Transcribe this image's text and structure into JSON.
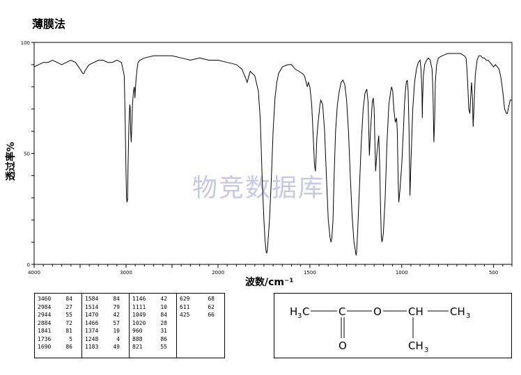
{
  "page": {
    "title": "薄膜法",
    "watermark": "物竞数据库"
  },
  "chart_data": {
    "type": "line",
    "title": "薄膜法",
    "xlabel": "波数/cm⁻¹",
    "ylabel": "透过率%",
    "x_ticks": [
      "4000",
      "3000",
      "2000",
      "1500",
      "1000",
      "500"
    ],
    "y_ticks": [
      "0",
      "50",
      "100"
    ],
    "xlim": [
      4000,
      400
    ],
    "ylim": [
      0,
      100
    ],
    "grid": false,
    "series": [
      {
        "x": [
          4000,
          3950,
          3900,
          3850,
          3800,
          3750,
          3700,
          3650,
          3600,
          3550,
          3500,
          3470,
          3460,
          3450,
          3420,
          3400,
          3350,
          3300,
          3250,
          3200,
          3150,
          3100,
          3050,
          3020,
          3010,
          3000,
          2995,
          2990,
          2984,
          2978,
          2970,
          2960,
          2955,
          2950,
          2944,
          2938,
          2930,
          2920,
          2910,
          2904,
          2900,
          2890,
          2880,
          2870,
          2850,
          2800,
          2700,
          2600,
          2500,
          2400,
          2300,
          2200,
          2100,
          2000,
          1950,
          1900,
          1870,
          1850,
          1841,
          1835,
          1825,
          1800,
          1780,
          1770,
          1760,
          1750,
          1745,
          1740,
          1736,
          1732,
          1728,
          1720,
          1710,
          1700,
          1690,
          1680,
          1670,
          1650,
          1620,
          1600,
          1590,
          1580,
          1560,
          1540,
          1530,
          1520,
          1514,
          1508,
          1500,
          1490,
          1480,
          1475,
          1470,
          1466,
          1462,
          1455,
          1450,
          1445,
          1440,
          1430,
          1420,
          1410,
          1400,
          1390,
          1385,
          1380,
          1374,
          1368,
          1360,
          1350,
          1340,
          1330,
          1320,
          1310,
          1300,
          1290,
          1280,
          1270,
          1260,
          1250,
          1248,
          1245,
          1240,
          1230,
          1220,
          1210,
          1200,
          1190,
          1183,
          1176,
          1170,
          1160,
          1155,
          1150,
          1146,
          1142,
          1135,
          1125,
          1120,
          1115,
          1111,
          1107,
          1100,
          1090,
          1080,
          1070,
          1060,
          1055,
          1049,
          1043,
          1035,
          1028,
          1024,
          1020,
          1016,
          1010,
          1000,
          990,
          985,
          980,
          975,
          970,
          965,
          960,
          955,
          950,
          940,
          930,
          920,
          910,
          900,
          895,
          890,
          888,
          886,
          882,
          875,
          865,
          855,
          845,
          835,
          830,
          825,
          821,
          817,
          810,
          800,
          780,
          750,
          700,
          680,
          660,
          650,
          645,
          640,
          635,
          629,
          625,
          620,
          615,
          611,
          607,
          600,
          590,
          580,
          570,
          560,
          550,
          540,
          530,
          520,
          510,
          500,
          490,
          480,
          470,
          460,
          450,
          440,
          430,
          425,
          420,
          410,
          400
        ],
        "y": [
          89,
          90,
          91,
          91,
          92,
          91,
          90,
          91,
          92,
          91,
          88,
          86,
          86,
          87,
          89,
          90,
          91,
          92,
          92,
          91,
          91,
          92,
          91,
          85,
          65,
          40,
          30,
          28,
          29,
          45,
          62,
          72,
          71,
          60,
          55,
          62,
          72,
          78,
          80,
          75,
          78,
          84,
          88,
          91,
          92,
          93,
          94,
          94,
          94,
          93,
          92,
          93,
          92,
          92,
          91,
          90,
          88,
          84,
          82,
          84,
          87,
          85,
          78,
          65,
          40,
          20,
          12,
          7,
          5,
          6,
          10,
          20,
          38,
          60,
          75,
          82,
          86,
          89,
          90,
          90,
          89,
          88,
          87,
          86,
          85,
          82,
          80,
          82,
          80,
          72,
          55,
          45,
          42,
          48,
          57,
          64,
          68,
          72,
          74,
          72,
          60,
          40,
          20,
          12,
          10,
          12,
          20,
          40,
          60,
          72,
          78,
          82,
          83,
          81,
          74,
          60,
          40,
          22,
          10,
          5,
          4,
          6,
          15,
          35,
          55,
          70,
          77,
          79,
          73,
          49,
          60,
          73,
          75,
          70,
          55,
          42,
          50,
          58,
          45,
          25,
          12,
          10,
          14,
          30,
          55,
          72,
          78,
          80,
          78,
          70,
          64,
          66,
          60,
          40,
          28,
          33,
          45,
          62,
          72,
          78,
          82,
          83,
          78,
          60,
          31,
          45,
          70,
          82,
          88,
          91,
          92,
          88,
          78,
          66,
          75,
          85,
          90,
          92,
          93,
          92,
          88,
          78,
          55,
          65,
          82,
          90,
          93,
          94,
          95,
          95,
          95,
          94,
          93,
          88,
          80,
          70,
          68,
          75,
          82,
          75,
          62,
          70,
          85,
          92,
          94,
          94,
          93,
          93,
          92,
          92,
          91,
          90,
          89,
          90,
          89,
          88,
          84,
          78,
          70,
          68,
          68,
          70,
          74,
          74
        ]
      }
    ],
    "peak_table": [
      [
        [
          "3460",
          "84"
        ],
        [
          "2984",
          "27"
        ],
        [
          "2944",
          "55"
        ],
        [
          "2884",
          "72"
        ],
        [
          "1841",
          "81"
        ],
        [
          "1736",
          "5"
        ],
        [
          "1690",
          "86"
        ]
      ],
      [
        [
          "1584",
          "84"
        ],
        [
          "1514",
          "79"
        ],
        [
          "1470",
          "42"
        ],
        [
          "1466",
          "57"
        ],
        [
          "1374",
          "10"
        ],
        [
          "1248",
          "4"
        ],
        [
          "1183",
          "49"
        ]
      ],
      [
        [
          "1146",
          "42"
        ],
        [
          "1111",
          "10"
        ],
        [
          "1049",
          "84"
        ],
        [
          "1020",
          "28"
        ],
        [
          "960",
          "31"
        ],
        [
          "888",
          "86"
        ],
        [
          "821",
          "55"
        ]
      ],
      [
        [
          "629",
          "68"
        ],
        [
          "611",
          "62"
        ],
        [
          "425",
          "66"
        ]
      ]
    ]
  },
  "structure": {
    "left_group": "H",
    "left_sub": "3",
    "left_c": "C",
    "carbonyl_c": "C",
    "carbonyl_o": "O",
    "ester_o": "O",
    "ch": "CH",
    "right_group": "CH",
    "right_sub": "3",
    "bottom_group": "CH",
    "bottom_sub": "3"
  }
}
